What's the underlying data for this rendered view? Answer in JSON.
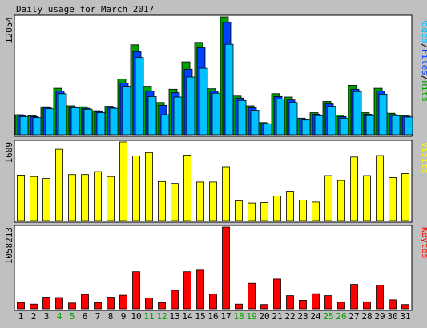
{
  "chart_data": {
    "type": "bar",
    "title": "Daily usage for March 2017",
    "categories": [
      "1",
      "2",
      "3",
      "4",
      "5",
      "6",
      "7",
      "8",
      "9",
      "10",
      "11",
      "12",
      "13",
      "14",
      "15",
      "16",
      "17",
      "18",
      "19",
      "20",
      "21",
      "22",
      "23",
      "24",
      "25",
      "26",
      "27",
      "28",
      "29",
      "30",
      "31"
    ],
    "weekend_days": [
      "4",
      "5",
      "11",
      "12",
      "18",
      "19",
      "25",
      "26"
    ],
    "panels": [
      {
        "id": "hits",
        "ymax_label": "12054",
        "ymax": 12054,
        "legend": [
          "Pages",
          "Files",
          "Hits"
        ],
        "series": [
          {
            "name": "Hits",
            "color": "#00a000",
            "values": [
              2050,
              1950,
              2850,
              4750,
              2950,
              2850,
              2450,
              2900,
              5700,
              9200,
              4950,
              3300,
              4650,
              7450,
              9450,
              4700,
              12054,
              3950,
              2950,
              1250,
              4200,
              3850,
              1700,
              2250,
              3400,
              2000,
              5050,
              2250,
              4750,
              2200,
              2000
            ]
          },
          {
            "name": "Files",
            "color": "#0040ff",
            "values": [
              1950,
              1850,
              2750,
              4450,
              2850,
              2700,
              2350,
              2800,
              5300,
              8500,
              4450,
              3000,
              4300,
              6700,
              8900,
              4450,
              11500,
              3750,
              2750,
              1150,
              3900,
              3550,
              1600,
              2100,
              3150,
              1850,
              4650,
              2100,
              4450,
              2050,
              1900
            ]
          },
          {
            "name": "Pages",
            "color": "#00c0ff",
            "values": [
              1850,
              1750,
              2650,
              4200,
              2750,
              2600,
              2250,
              2700,
              4950,
              7900,
              3900,
              2050,
              3850,
              5900,
              6800,
              4250,
              9250,
              3500,
              2500,
              1100,
              3650,
              3300,
              1500,
              1950,
              2900,
              1700,
              4400,
              1950,
              4150,
              1950,
              1800
            ]
          }
        ]
      },
      {
        "id": "visits",
        "ymax_label": "1609",
        "ymax": 1609,
        "legend": [
          "Visits"
        ],
        "series": [
          {
            "name": "Visits",
            "color": "#ffff00",
            "values": [
              930,
              900,
              860,
              1460,
              940,
              940,
              1000,
              900,
              1609,
              1320,
              1390,
              800,
              760,
              1340,
              790,
              790,
              1100,
              400,
              360,
              370,
              500,
              600,
              420,
              380,
              920,
              820,
              1300,
              920,
              1330,
              880,
              960
            ]
          }
        ]
      },
      {
        "id": "kbytes",
        "ymax_label": "1058213",
        "ymax": 1058213,
        "legend": [
          "KBytes"
        ],
        "series": [
          {
            "name": "KBytes",
            "color": "#ff0000",
            "values": [
              80000,
              60000,
              150000,
              145000,
              75000,
              185000,
              80000,
              150000,
              175000,
              480000,
              140000,
              80000,
              240000,
              480000,
              500000,
              190000,
              1058213,
              60000,
              330000,
              55000,
              385000,
              170000,
              110000,
              195000,
              170000,
              85000,
              315000,
              90000,
              305000,
              115000,
              55000
            ]
          }
        ]
      }
    ]
  }
}
